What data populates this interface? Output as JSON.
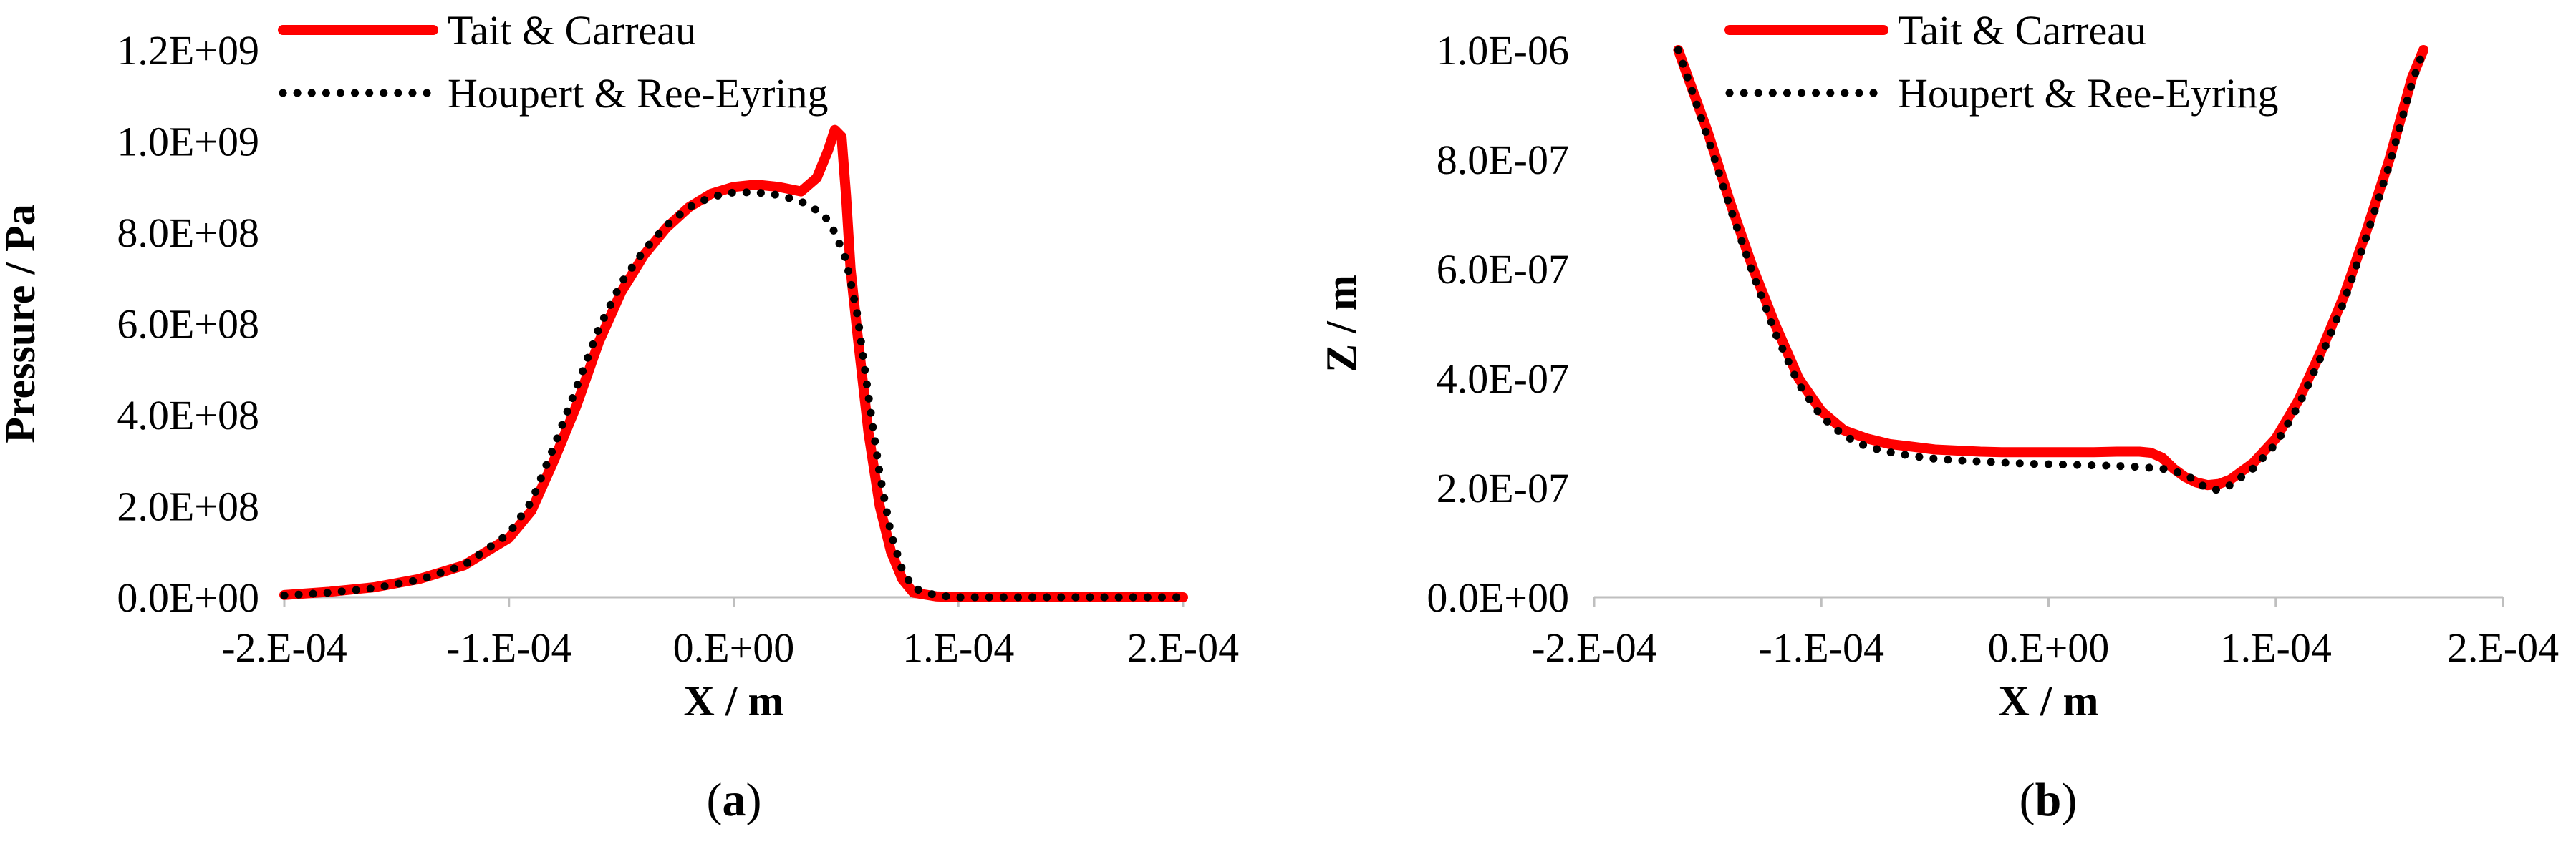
{
  "chart_data": [
    {
      "panel": "(a)",
      "panel_letter": "a",
      "type": "line",
      "xlabel": "X / m",
      "ylabel": "Pressure / Pa",
      "xlim": [
        -0.0002,
        0.0002
      ],
      "ylim": [
        0,
        1200000000
      ],
      "x_ticks": [
        "-2.E-04",
        "-1.E-04",
        "0.E+00",
        "1.E-04",
        "2.E-04"
      ],
      "y_ticks": [
        "0.0E+00",
        "2.0E+08",
        "4.0E+08",
        "6.0E+08",
        "8.0E+08",
        "1.0E+09",
        "1.2E+09"
      ],
      "legend_position": "top-center",
      "series": [
        {
          "name": "Tait & Carreau",
          "color": "#ff0000",
          "style": "solid",
          "x": [
            -0.0002,
            -0.00018,
            -0.00016,
            -0.00014,
            -0.00012,
            -0.0001,
            -9e-05,
            -8e-05,
            -7e-05,
            -6e-05,
            -5e-05,
            -4e-05,
            -3e-05,
            -2e-05,
            -1e-05,
            0.0,
            1e-05,
            2e-05,
            3e-05,
            3.7e-05,
            4.2e-05,
            4.5e-05,
            4.8e-05,
            5e-05,
            5.2e-05,
            5.5e-05,
            6e-05,
            6.5e-05,
            7e-05,
            7.5e-05,
            8e-05,
            9e-05,
            0.0001,
            0.00012,
            0.00016,
            0.0002
          ],
          "y": [
            5000000,
            12000000,
            22000000,
            40000000,
            70000000,
            130000000,
            190000000,
            300000000,
            420000000,
            560000000,
            670000000,
            750000000,
            810000000,
            855000000,
            885000000,
            900000000,
            905000000,
            900000000,
            890000000,
            920000000,
            980000000,
            1025000000,
            1010000000,
            880000000,
            720000000,
            580000000,
            360000000,
            200000000,
            100000000,
            40000000,
            10000000,
            2000000,
            0,
            0,
            0,
            0
          ]
        },
        {
          "name": "Houpert & Ree-Eyring",
          "color": "#000000",
          "style": "dotted",
          "x": [
            -0.0002,
            -0.00018,
            -0.00016,
            -0.00014,
            -0.00012,
            -0.0001,
            -9e-05,
            -8e-05,
            -7e-05,
            -6e-05,
            -5e-05,
            -4e-05,
            -3e-05,
            -2e-05,
            -1e-05,
            0.0,
            1e-05,
            2e-05,
            3e-05,
            4e-05,
            4.5e-05,
            5e-05,
            5.5e-05,
            6e-05,
            6.5e-05,
            7e-05,
            7.5e-05,
            8e-05,
            9e-05,
            0.0001,
            0.00012,
            0.00016,
            0.0002
          ],
          "y": [
            4000000,
            10000000,
            20000000,
            38000000,
            70000000,
            140000000,
            210000000,
            330000000,
            460000000,
            590000000,
            690000000,
            760000000,
            815000000,
            855000000,
            878000000,
            888000000,
            888000000,
            882000000,
            868000000,
            840000000,
            800000000,
            740000000,
            620000000,
            440000000,
            270000000,
            140000000,
            60000000,
            20000000,
            4000000,
            0,
            0,
            0,
            0
          ]
        }
      ]
    },
    {
      "panel": "(b)",
      "panel_letter": "b",
      "type": "line",
      "xlabel": "X / m",
      "ylabel": "Z / m",
      "xlim": [
        -0.0002,
        0.0002
      ],
      "ylim": [
        0,
        1e-06
      ],
      "x_ticks": [
        "-2.E-04",
        "-1.E-04",
        "0.E+00",
        "1.E-04",
        "2.E-04"
      ],
      "y_ticks": [
        "0.0E+00",
        "2.0E-07",
        "4.0E-07",
        "6.0E-07",
        "8.0E-07",
        "1.0E-06"
      ],
      "legend_position": "top-center",
      "series": [
        {
          "name": "Tait & Carreau",
          "color": "#ff0000",
          "style": "solid",
          "x": [
            -0.000163,
            -0.00015,
            -0.00014,
            -0.00013,
            -0.00012,
            -0.00011,
            -0.0001,
            -9e-05,
            -8e-05,
            -7e-05,
            -6e-05,
            -5e-05,
            -4e-05,
            -3e-05,
            -2e-05,
            -1e-05,
            0.0,
            1e-05,
            2e-05,
            3e-05,
            4e-05,
            4.5e-05,
            5e-05,
            5.5e-05,
            6e-05,
            6.5e-05,
            7e-05,
            7.5e-05,
            8e-05,
            9e-05,
            0.0001,
            0.00011,
            0.00012,
            0.00013,
            0.00014,
            0.00015,
            0.00016,
            0.000165
          ],
          "y": [
            1e-06,
            8.5e-07,
            7.2e-07,
            6e-07,
            4.95e-07,
            4e-07,
            3.4e-07,
            3.05e-07,
            2.9e-07,
            2.8e-07,
            2.75e-07,
            2.7e-07,
            2.68e-07,
            2.66e-07,
            2.65e-07,
            2.65e-07,
            2.65e-07,
            2.65e-07,
            2.65e-07,
            2.66e-07,
            2.66e-07,
            2.64e-07,
            2.55e-07,
            2.35e-07,
            2.2e-07,
            2.1e-07,
            2.05e-07,
            2.07e-07,
            2.15e-07,
            2.45e-07,
            2.9e-07,
            3.6e-07,
            4.5e-07,
            5.5e-07,
            6.7e-07,
            8e-07,
            9.5e-07,
            1e-06
          ]
        },
        {
          "name": "Houpert & Ree-Eyring",
          "color": "#000000",
          "style": "dotted",
          "x": [
            -0.000163,
            -0.00015,
            -0.00014,
            -0.00013,
            -0.00012,
            -0.00011,
            -0.0001,
            -9e-05,
            -8e-05,
            -7e-05,
            -6e-05,
            -5e-05,
            -4e-05,
            -3e-05,
            -2e-05,
            -1e-05,
            0.0,
            1e-05,
            2e-05,
            3e-05,
            4e-05,
            5e-05,
            6e-05,
            6.5e-05,
            7e-05,
            7.5e-05,
            8e-05,
            9e-05,
            0.0001,
            0.00011,
            0.00012,
            0.00013,
            0.00014,
            0.00015,
            0.00016,
            0.000165
          ],
          "y": [
            1e-06,
            8.4e-07,
            7.1e-07,
            5.9e-07,
            4.8e-07,
            3.9e-07,
            3.3e-07,
            2.95e-07,
            2.75e-07,
            2.65e-07,
            2.58e-07,
            2.53e-07,
            2.5e-07,
            2.48e-07,
            2.46e-07,
            2.44e-07,
            2.43e-07,
            2.42e-07,
            2.41e-07,
            2.4e-07,
            2.38e-07,
            2.35e-07,
            2.25e-07,
            2.12e-07,
            1.98e-07,
            1.96e-07,
            2.05e-07,
            2.35e-07,
            2.8e-07,
            3.5e-07,
            4.4e-07,
            5.4e-07,
            6.6e-07,
            7.9e-07,
            9.4e-07,
            1e-06
          ]
        }
      ]
    }
  ]
}
